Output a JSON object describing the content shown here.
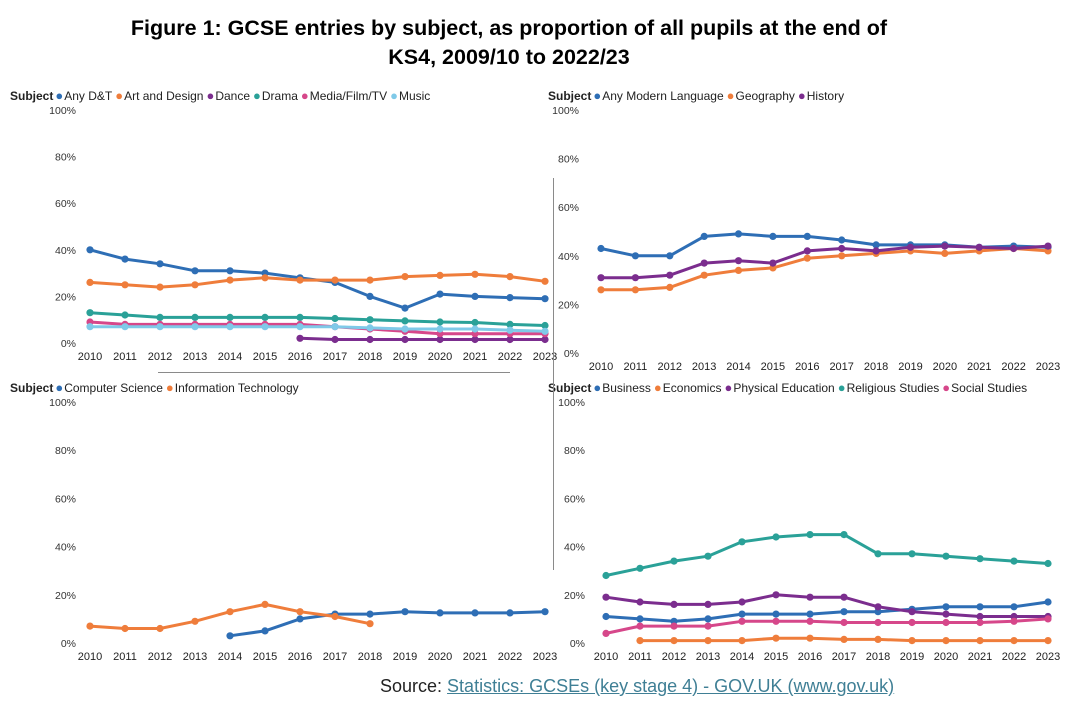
{
  "title": {
    "line1": "Figure 1: GCSE entries by subject, as proportion of all pupils at the end of",
    "line2": "KS4, 2009/10 to 2022/23"
  },
  "source": {
    "prefix": "Source: ",
    "link_text": "Statistics: GCSEs (key stage 4) - GOV.UK (www.gov.uk)"
  },
  "chart_data": [
    {
      "type": "line",
      "legend_title": "Subject",
      "categories": [
        "2010",
        "2011",
        "2012",
        "2013",
        "2014",
        "2015",
        "2016",
        "2017",
        "2018",
        "2019",
        "2020",
        "2021",
        "2022",
        "2023"
      ],
      "y_ticks": [
        "0%",
        "20%",
        "40%",
        "60%",
        "80%",
        "100%"
      ],
      "ylim": [
        0,
        100
      ],
      "series": [
        {
          "name": "Any D&T",
          "color": "#2e6eb5",
          "values": [
            40,
            36,
            34,
            31,
            31,
            30,
            28,
            26,
            20,
            15,
            21,
            20,
            19.5,
            19
          ]
        },
        {
          "name": "Art and Design",
          "color": "#ef7d3b",
          "values": [
            26,
            25,
            24,
            25,
            27,
            28,
            27,
            27,
            27,
            28.5,
            29,
            29.5,
            28.5,
            26.5
          ]
        },
        {
          "name": "Dance",
          "color": "#7b2d8e",
          "values": [
            null,
            null,
            null,
            null,
            null,
            null,
            2,
            1.5,
            1.5,
            1.5,
            1.5,
            1.5,
            1.5,
            1.5
          ]
        },
        {
          "name": "Drama",
          "color": "#2aa198",
          "values": [
            13,
            12,
            11,
            11,
            11,
            11,
            11,
            10.5,
            10,
            9.5,
            9,
            8.8,
            8,
            7.5
          ]
        },
        {
          "name": "Media/Film/TV",
          "color": "#d6478a",
          "values": [
            9,
            8,
            8,
            8,
            8,
            8,
            8,
            7,
            6,
            5,
            4,
            4,
            4,
            4
          ]
        },
        {
          "name": "Music",
          "color": "#7fc9e8",
          "values": [
            7,
            7,
            7,
            7,
            7,
            7,
            7,
            7,
            6.5,
            6,
            6,
            6,
            5.5,
            5
          ]
        }
      ]
    },
    {
      "type": "line",
      "legend_title": "Subject",
      "categories": [
        "2010",
        "2011",
        "2012",
        "2013",
        "2014",
        "2015",
        "2016",
        "2017",
        "2018",
        "2019",
        "2020",
        "2021",
        "2022",
        "2023"
      ],
      "y_ticks": [
        "0%",
        "20%",
        "40%",
        "60%",
        "80%",
        "100%"
      ],
      "ylim": [
        0,
        100
      ],
      "series": [
        {
          "name": "Any Modern Language",
          "color": "#2e6eb5",
          "values": [
            43,
            40,
            40,
            48,
            49,
            48,
            48,
            46.5,
            44.5,
            44.5,
            44.5,
            43.5,
            44,
            43.5
          ]
        },
        {
          "name": "Geography",
          "color": "#ef7d3b",
          "values": [
            26,
            26,
            27,
            32,
            34,
            35,
            39,
            40,
            41,
            42,
            41,
            42,
            43,
            42
          ]
        },
        {
          "name": "History",
          "color": "#7b2d8e",
          "values": [
            31,
            31,
            32,
            37,
            38,
            37,
            42,
            43,
            42,
            43.5,
            44,
            43.5,
            43,
            44
          ]
        }
      ]
    },
    {
      "type": "line",
      "legend_title": "Subject",
      "categories": [
        "2010",
        "2011",
        "2012",
        "2013",
        "2014",
        "2015",
        "2016",
        "2017",
        "2018",
        "2019",
        "2020",
        "2021",
        "2022",
        "2023"
      ],
      "y_ticks": [
        "0%",
        "20%",
        "40%",
        "60%",
        "80%",
        "100%"
      ],
      "ylim": [
        0,
        100
      ],
      "series": [
        {
          "name": "Computer Science",
          "color": "#2e6eb5",
          "values": [
            null,
            null,
            null,
            null,
            3,
            5,
            10,
            12,
            12,
            13,
            12.5,
            12.5,
            12.5,
            13
          ]
        },
        {
          "name": "Information Technology",
          "color": "#ef7d3b",
          "values": [
            7,
            6,
            6,
            9,
            13,
            16,
            13,
            11,
            8,
            null,
            null,
            null,
            null,
            null
          ]
        }
      ]
    },
    {
      "type": "line",
      "legend_title": "Subject",
      "categories": [
        "2010",
        "2011",
        "2012",
        "2013",
        "2014",
        "2015",
        "2016",
        "2017",
        "2018",
        "2019",
        "2020",
        "2021",
        "2022",
        "2023"
      ],
      "y_ticks": [
        "0%",
        "20%",
        "40%",
        "60%",
        "80%",
        "100%"
      ],
      "ylim": [
        0,
        100
      ],
      "series": [
        {
          "name": "Business",
          "color": "#2e6eb5",
          "values": [
            11,
            10,
            9,
            10,
            12,
            12,
            12,
            13,
            13,
            14,
            15,
            15,
            15,
            17
          ]
        },
        {
          "name": "Economics",
          "color": "#ef7d3b",
          "values": [
            null,
            1,
            1,
            1,
            1,
            2,
            2,
            1.5,
            1.5,
            1,
            1,
            1,
            1,
            1
          ]
        },
        {
          "name": "Physical Education",
          "color": "#7b2d8e",
          "values": [
            19,
            17,
            16,
            16,
            17,
            20,
            19,
            19,
            15,
            13,
            12,
            11,
            11,
            11
          ]
        },
        {
          "name": "Religious Studies",
          "color": "#2aa198",
          "values": [
            28,
            31,
            34,
            36,
            42,
            44,
            45,
            45,
            37,
            37,
            36,
            35,
            34,
            33
          ]
        },
        {
          "name": "Social Studies",
          "color": "#d6478a",
          "values": [
            4,
            7,
            7,
            7,
            9,
            9,
            9,
            8.5,
            8.5,
            8.5,
            8.5,
            8.5,
            9,
            10
          ]
        }
      ]
    }
  ]
}
